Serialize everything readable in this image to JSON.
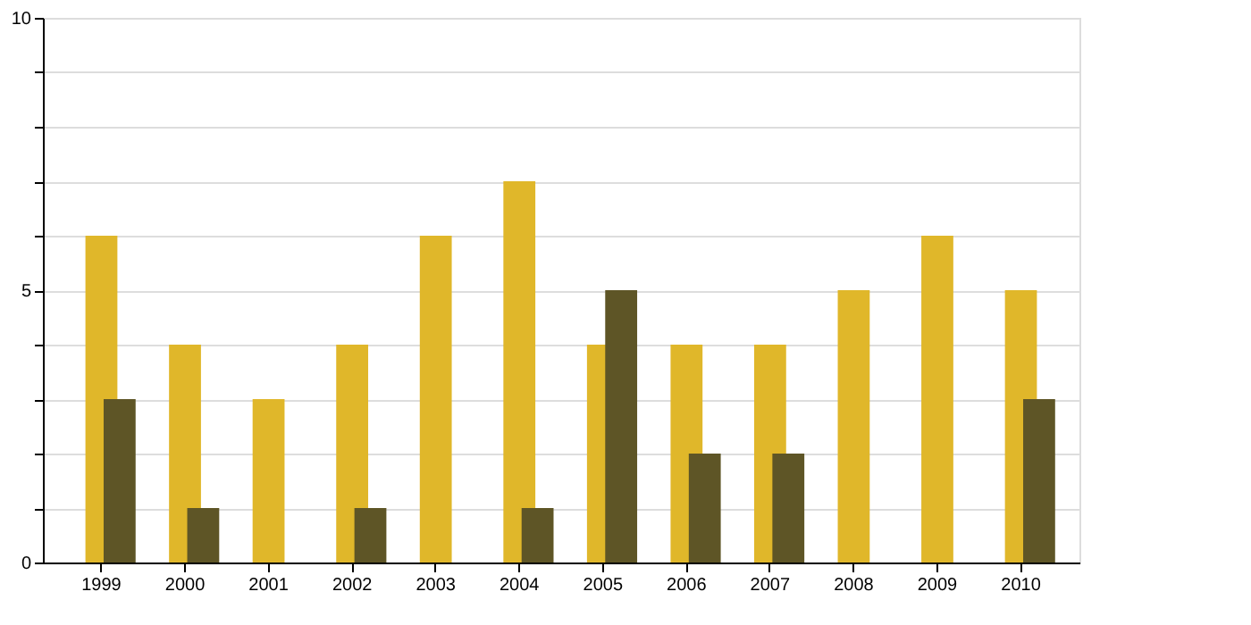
{
  "chart_data": {
    "type": "bar",
    "categories": [
      "1999",
      "2000",
      "2001",
      "2002",
      "2003",
      "2004",
      "2005",
      "2006",
      "2007",
      "2008",
      "2009",
      "2010"
    ],
    "series": [
      {
        "color": "#e0b72a",
        "values": [
          6,
          4,
          3,
          4,
          6,
          7,
          4,
          4,
          4,
          5,
          6,
          5
        ]
      },
      {
        "color": "#5e5526",
        "values": [
          3,
          1,
          null,
          1,
          null,
          1,
          5,
          2,
          2,
          null,
          null,
          3
        ]
      }
    ],
    "ylim": [
      0,
      10
    ],
    "yticks": [
      0,
      {
        "value": 1,
        "label": null
      },
      {
        "value": 2,
        "label": null
      },
      {
        "value": 3,
        "label": null
      },
      {
        "value": 4,
        "label": null
      },
      5,
      {
        "value": 6,
        "label": null
      },
      {
        "value": 7,
        "label": null
      },
      {
        "value": 8,
        "label": null
      },
      {
        "value": 9,
        "label": null
      },
      10
    ],
    "grid": "y"
  }
}
